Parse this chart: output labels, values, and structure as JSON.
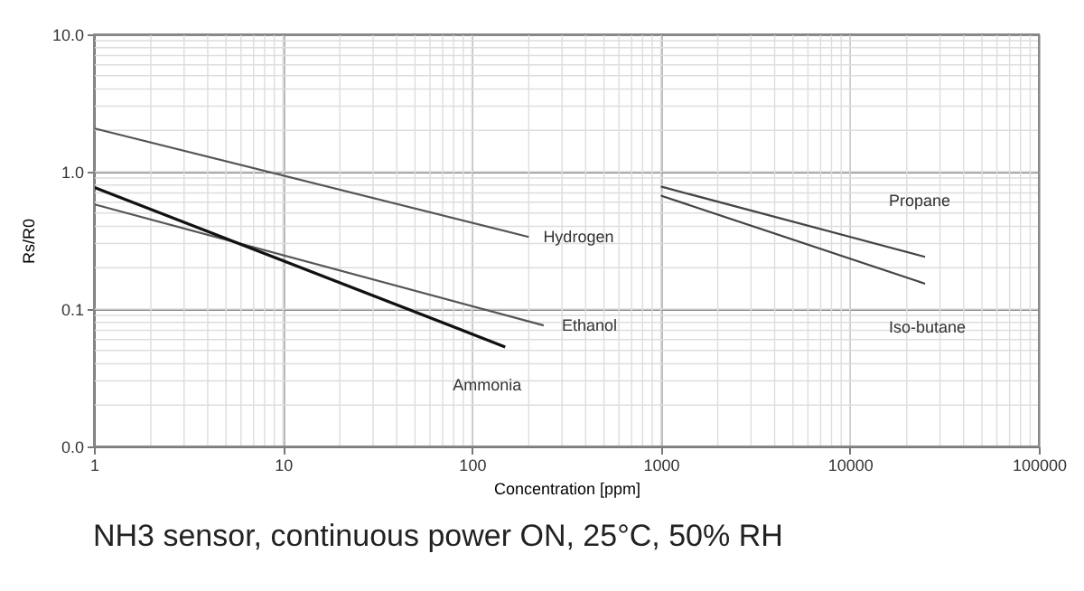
{
  "chart_data": {
    "type": "line",
    "title": "NH3 sensor, continuous power ON, 25°C, 50% RH",
    "xlabel": "Concentration [ppm]",
    "ylabel": "Rs/R0",
    "log": "xy",
    "grid": true,
    "marker": "none",
    "line_style": "solid",
    "xlim": [
      1,
      100000
    ],
    "xticks": [
      1,
      10,
      100,
      1000,
      10000,
      100000
    ],
    "ylim": [
      0.01,
      10
    ],
    "yticks": [
      {
        "value": 0.01,
        "label": "0.0"
      },
      {
        "value": 0.1,
        "label": "0.1"
      },
      {
        "value": 1,
        "label": "1.0"
      },
      {
        "value": 10,
        "label": "10.0"
      }
    ],
    "series": [
      {
        "name": "Hydrogen",
        "color": "#555555",
        "x": [
          1,
          200
        ],
        "values": [
          2.07,
          0.335
        ]
      },
      {
        "name": "Ethanol",
        "color": "#555555",
        "x": [
          1,
          240
        ],
        "values": [
          0.58,
          0.076
        ]
      },
      {
        "name": "Ammonia",
        "color": "#111111",
        "x": [
          1,
          150
        ],
        "values": [
          0.77,
          0.053
        ]
      },
      {
        "name": "Propane",
        "color": "#444444",
        "x": [
          1000,
          25000
        ],
        "values": [
          0.78,
          0.24
        ]
      },
      {
        "name": "Iso-butane",
        "color": "#444444",
        "x": [
          1000,
          25000
        ],
        "values": [
          0.67,
          0.153
        ]
      }
    ]
  }
}
